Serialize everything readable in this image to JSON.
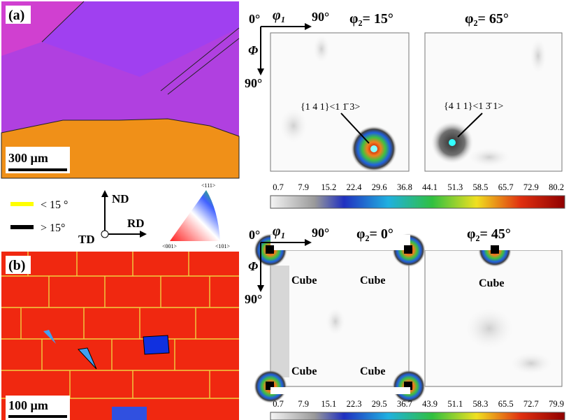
{
  "panel_a": {
    "label": "(a)",
    "scale": "300 µm"
  },
  "legend": {
    "low": "< 15 °",
    "high": "> 15°"
  },
  "axes": {
    "nd": "ND",
    "rd": "RD",
    "td": "TD"
  },
  "ipf": {
    "top": "<111>",
    "left": "<001>",
    "right": "<101>"
  },
  "panel_b": {
    "label": "(b)",
    "scale": "100 µm"
  },
  "odf_top": {
    "phi0": "0°",
    "phi1": "φ₁",
    "phi90": "90°",
    "Phi": "Φ",
    "Phi90": "90°",
    "sections": [
      "φ₂= 15°",
      "φ₂= 65°"
    ],
    "annotations": [
      "{1 4 1}<1 1̄ 3>",
      "{4 1 1}<1 3̄ 1>"
    ],
    "colorbar": [
      0.7,
      7.9,
      15.2,
      22.4,
      29.6,
      36.8,
      44.1,
      51.3,
      58.5,
      65.7,
      72.9,
      80.2
    ]
  },
  "odf_bottom": {
    "phi0": "0°",
    "phi1": "φ₁",
    "phi90": "90°",
    "Phi": "Φ",
    "Phi90": "90°",
    "sections": [
      "φ₂= 0°",
      "φ₂= 45°"
    ],
    "annotations": [
      "Cube",
      "Cube",
      "Cube",
      "Cube",
      "Cube"
    ],
    "colorbar": [
      0.7,
      7.9,
      15.1,
      22.3,
      29.5,
      36.7,
      43.9,
      51.1,
      58.3,
      65.5,
      72.7,
      79.9
    ]
  }
}
